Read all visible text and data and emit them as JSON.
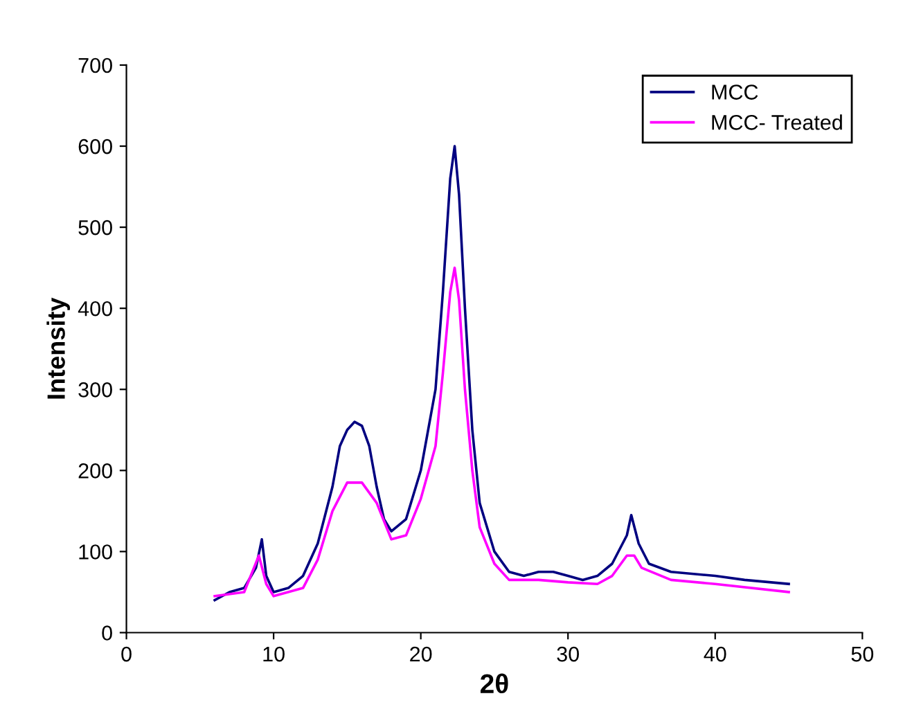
{
  "chart_data": {
    "type": "line",
    "xlabel": "2θ",
    "ylabel": "Intensity",
    "xlim": [
      0,
      50
    ],
    "xticks": [
      0,
      10,
      20,
      30,
      40,
      50
    ],
    "ylim": [
      0,
      700
    ],
    "yticks": [
      0,
      100,
      200,
      300,
      400,
      500,
      600,
      700
    ],
    "grid": false,
    "legend": "top right",
    "marker": "none",
    "line_style": "solid",
    "series": [
      {
        "name": "MCC",
        "color": "#000080",
        "x": [
          6,
          7,
          8,
          8.8,
          9.2,
          9.5,
          10,
          11,
          12,
          13,
          14,
          14.5,
          15,
          15.5,
          16,
          16.5,
          17,
          17.5,
          18,
          19,
          20,
          21,
          21.5,
          22,
          22.3,
          22.6,
          23,
          23.5,
          24,
          25,
          26,
          27,
          28,
          29,
          30,
          31,
          32,
          33,
          34,
          34.3,
          34.8,
          35.5,
          37,
          40,
          42,
          45
        ],
        "values": [
          40,
          50,
          55,
          80,
          115,
          70,
          50,
          55,
          70,
          110,
          180,
          230,
          250,
          260,
          255,
          230,
          180,
          140,
          125,
          140,
          200,
          300,
          420,
          560,
          600,
          540,
          400,
          250,
          160,
          100,
          75,
          70,
          75,
          75,
          70,
          65,
          70,
          85,
          120,
          145,
          110,
          85,
          75,
          70,
          65,
          60
        ]
      },
      {
        "name": "MCC- Treated",
        "color": "#ff00ff",
        "x": [
          6,
          8,
          9,
          9.5,
          10,
          12,
          13,
          14,
          15,
          16,
          17,
          18,
          19,
          20,
          21,
          21.5,
          22,
          22.3,
          22.6,
          23,
          23.5,
          24,
          25,
          26,
          28,
          30,
          32,
          33,
          34,
          34.5,
          35,
          37,
          40,
          45
        ],
        "values": [
          45,
          50,
          95,
          60,
          45,
          55,
          90,
          150,
          185,
          185,
          160,
          115,
          120,
          165,
          230,
          320,
          420,
          450,
          410,
          300,
          200,
          130,
          85,
          65,
          65,
          62,
          60,
          70,
          95,
          95,
          80,
          65,
          60,
          50
        ]
      }
    ]
  }
}
